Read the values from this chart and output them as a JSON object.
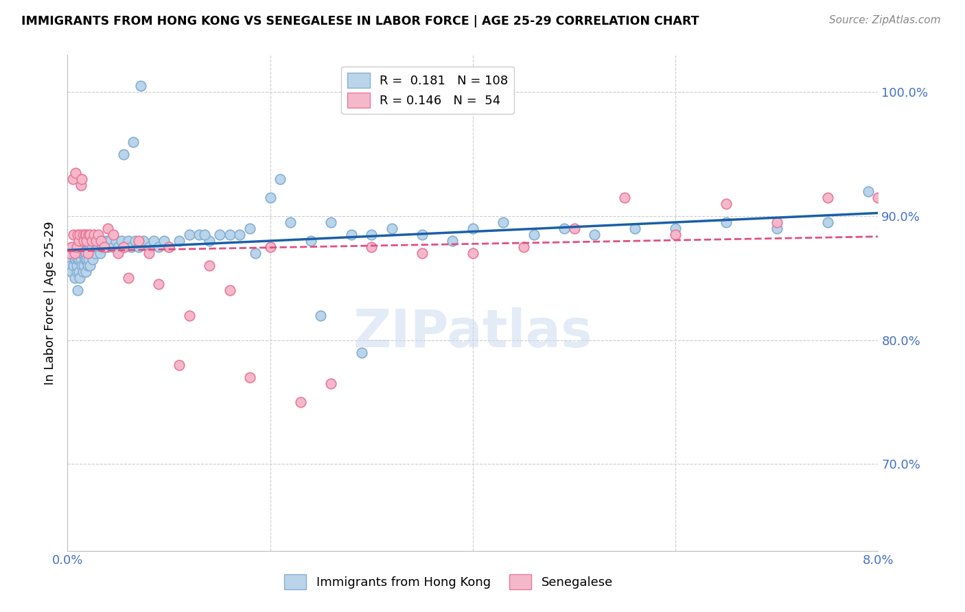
{
  "title": "IMMIGRANTS FROM HONG KONG VS SENEGALESE IN LABOR FORCE | AGE 25-29 CORRELATION CHART",
  "source": "Source: ZipAtlas.com",
  "ylabel": "In Labor Force | Age 25-29",
  "yticks": [
    70.0,
    80.0,
    90.0,
    100.0
  ],
  "ytick_labels": [
    "70.0%",
    "80.0%",
    "90.0%",
    "100.0%"
  ],
  "xmin": 0.0,
  "xmax": 8.0,
  "ymin": 63.0,
  "ymax": 103.0,
  "hk_color": "#bad4ea",
  "hk_edge_color": "#85afd4",
  "sen_color": "#f5b8cb",
  "sen_edge_color": "#e87a9a",
  "hk_R": 0.181,
  "hk_N": 108,
  "sen_R": 0.146,
  "sen_N": 54,
  "hk_line_color": "#1a5fa8",
  "sen_line_color": "#e05080",
  "legend_label_hk": "Immigrants from Hong Kong",
  "legend_label_sen": "Senegalese",
  "hk_x": [
    0.02,
    0.03,
    0.04,
    0.05,
    0.06,
    0.06,
    0.07,
    0.07,
    0.08,
    0.08,
    0.09,
    0.09,
    0.1,
    0.1,
    0.1,
    0.11,
    0.11,
    0.11,
    0.12,
    0.12,
    0.13,
    0.13,
    0.14,
    0.14,
    0.15,
    0.15,
    0.16,
    0.16,
    0.17,
    0.17,
    0.18,
    0.18,
    0.19,
    0.19,
    0.2,
    0.2,
    0.21,
    0.21,
    0.22,
    0.22,
    0.23,
    0.24,
    0.25,
    0.26,
    0.27,
    0.28,
    0.29,
    0.3,
    0.31,
    0.32,
    0.33,
    0.34,
    0.35,
    0.36,
    0.38,
    0.4,
    0.42,
    0.45,
    0.48,
    0.5,
    0.53,
    0.56,
    0.6,
    0.63,
    0.67,
    0.7,
    0.75,
    0.8,
    0.85,
    0.9,
    0.95,
    1.0,
    1.1,
    1.2,
    1.3,
    1.4,
    1.5,
    1.6,
    1.7,
    1.8,
    2.0,
    2.2,
    2.4,
    2.6,
    2.8,
    3.0,
    3.2,
    3.5,
    3.8,
    4.0,
    4.3,
    4.6,
    4.9,
    5.2,
    5.6,
    6.0,
    6.5,
    7.0,
    7.5,
    7.9,
    1.35,
    0.55,
    0.65,
    0.72,
    1.85,
    2.1,
    2.5,
    2.9
  ],
  "hk_y": [
    86.5,
    86.0,
    85.5,
    87.0,
    86.0,
    87.5,
    85.0,
    86.5,
    87.0,
    86.5,
    85.5,
    86.0,
    84.0,
    86.5,
    87.0,
    85.5,
    86.5,
    87.5,
    85.0,
    87.0,
    86.5,
    87.0,
    86.0,
    87.5,
    85.5,
    87.0,
    86.0,
    87.5,
    86.5,
    87.0,
    85.5,
    87.0,
    86.5,
    87.5,
    86.0,
    87.5,
    86.5,
    87.5,
    86.0,
    87.5,
    87.0,
    87.5,
    86.5,
    88.0,
    87.0,
    88.0,
    87.5,
    87.5,
    88.0,
    87.0,
    88.0,
    87.5,
    88.0,
    87.5,
    88.0,
    87.5,
    88.0,
    87.5,
    88.0,
    87.5,
    88.0,
    87.5,
    88.0,
    87.5,
    88.0,
    87.5,
    88.0,
    87.5,
    88.0,
    87.5,
    88.0,
    87.5,
    88.0,
    88.5,
    88.5,
    88.0,
    88.5,
    88.5,
    88.5,
    89.0,
    91.5,
    89.5,
    88.0,
    89.5,
    88.5,
    88.5,
    89.0,
    88.5,
    88.0,
    89.0,
    89.5,
    88.5,
    89.0,
    88.5,
    89.0,
    89.0,
    89.5,
    89.0,
    89.5,
    92.0,
    88.5,
    95.0,
    96.0,
    100.5,
    87.0,
    93.0,
    82.0,
    79.0
  ],
  "sen_x": [
    0.02,
    0.04,
    0.05,
    0.06,
    0.07,
    0.08,
    0.09,
    0.1,
    0.11,
    0.12,
    0.13,
    0.14,
    0.15,
    0.16,
    0.17,
    0.18,
    0.19,
    0.2,
    0.21,
    0.22,
    0.24,
    0.26,
    0.28,
    0.3,
    0.33,
    0.36,
    0.4,
    0.45,
    0.5,
    0.55,
    0.6,
    0.7,
    0.8,
    0.9,
    1.0,
    1.1,
    1.2,
    1.4,
    1.6,
    1.8,
    2.0,
    2.3,
    2.6,
    3.0,
    3.5,
    4.0,
    4.5,
    5.0,
    5.5,
    6.0,
    6.5,
    7.0,
    7.5,
    8.0
  ],
  "sen_y": [
    87.0,
    87.5,
    93.0,
    88.5,
    87.0,
    93.5,
    87.5,
    88.5,
    88.0,
    88.5,
    92.5,
    93.0,
    88.5,
    88.0,
    88.5,
    88.5,
    88.0,
    87.0,
    88.5,
    88.5,
    88.0,
    88.5,
    88.0,
    88.5,
    88.0,
    87.5,
    89.0,
    88.5,
    87.0,
    87.5,
    85.0,
    88.0,
    87.0,
    84.5,
    87.5,
    78.0,
    82.0,
    86.0,
    84.0,
    77.0,
    87.5,
    75.0,
    76.5,
    87.5,
    87.0,
    87.0,
    87.5,
    89.0,
    91.5,
    88.5,
    91.0,
    89.5,
    91.5,
    91.5
  ]
}
